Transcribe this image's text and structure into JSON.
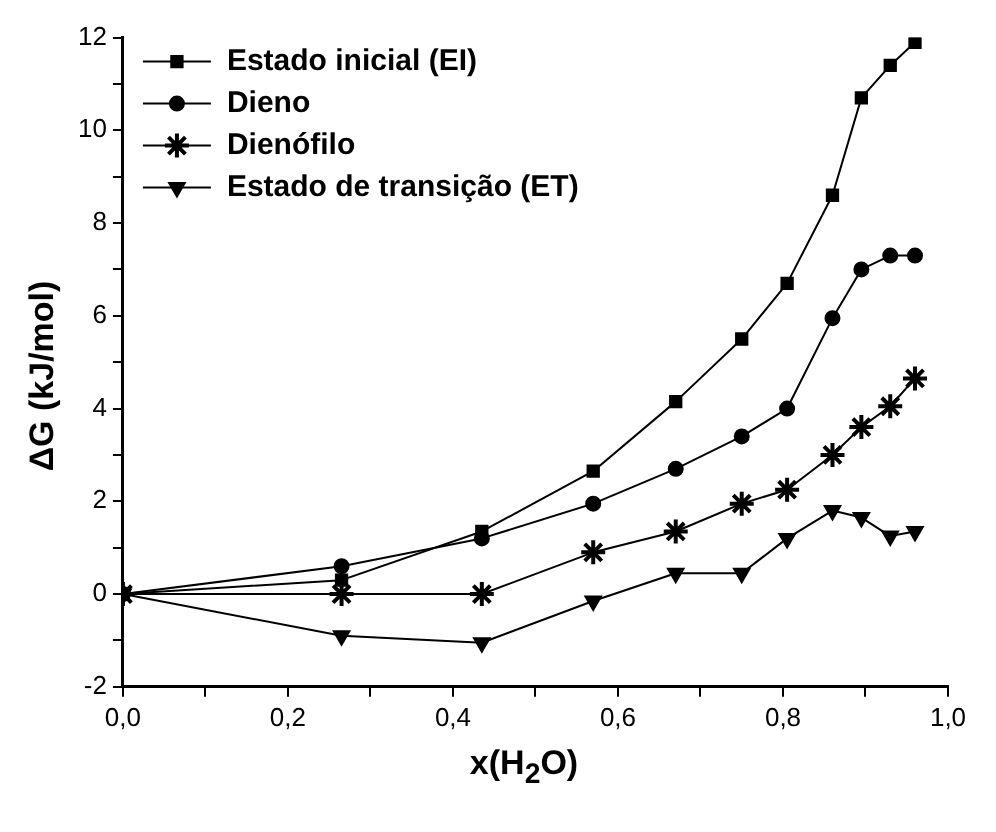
{
  "chart_data": {
    "type": "line",
    "xlabel": "x(H$_{2}$O)",
    "ylabel": "ΔG (kJ/mol)",
    "x": [
      0,
      0.265,
      0.435,
      0.57,
      0.67,
      0.75,
      0.805,
      0.86,
      0.895,
      0.93,
      0.96
    ],
    "series": [
      {
        "name": "Estado inicial (EI)",
        "color": "#000000",
        "marker": "square",
        "values": [
          0,
          0.3,
          1.35,
          2.65,
          4.15,
          5.5,
          6.7,
          8.6,
          10.7,
          11.4,
          11.9
        ]
      },
      {
        "name": "Dieno",
        "color": "#000000",
        "marker": "circle",
        "values": [
          0,
          0.6,
          1.2,
          1.95,
          2.7,
          3.4,
          4.0,
          5.95,
          7.0,
          7.3,
          7.3
        ]
      },
      {
        "name": "Dienófilo",
        "color": "#000000",
        "marker": "cross",
        "values": [
          0,
          0,
          0,
          0.9,
          1.35,
          1.95,
          2.25,
          3.0,
          3.6,
          4.05,
          4.65
        ]
      },
      {
        "name": "Estado de transição (ET)",
        "color": "#000000",
        "marker": "triangle",
        "values": [
          0,
          -0.9,
          -1.05,
          -0.15,
          0.45,
          0.45,
          1.2,
          1.8,
          1.65,
          1.25,
          1.35
        ]
      }
    ],
    "xlim": [
      0,
      1
    ],
    "ylim": [
      -2,
      12
    ],
    "xticks": [
      {
        "value": 0,
        "label": "0,0"
      },
      {
        "value": 0.1,
        "label": null
      },
      {
        "value": 0.2,
        "label": "0,2"
      },
      {
        "value": 0.3,
        "label": null
      },
      {
        "value": 0.4,
        "label": "0,4"
      },
      {
        "value": 0.5,
        "label": null
      },
      {
        "value": 0.6,
        "label": "0,6"
      },
      {
        "value": 0.7,
        "label": null
      },
      {
        "value": 0.8,
        "label": "0,8"
      },
      {
        "value": 0.9,
        "label": null
      },
      {
        "value": 1,
        "label": "1,0"
      }
    ],
    "yticks": [
      -2,
      {
        "value": -1,
        "label": null
      },
      0,
      {
        "value": 1,
        "label": null
      },
      2,
      {
        "value": 3,
        "label": null
      },
      4,
      {
        "value": 5,
        "label": null
      },
      6,
      {
        "value": 7,
        "label": null
      },
      8,
      {
        "value": 9,
        "label": null
      },
      10,
      {
        "value": 11,
        "label": null
      },
      12
    ],
    "grid": false,
    "legend": "top left",
    "line_style": "solid"
  }
}
